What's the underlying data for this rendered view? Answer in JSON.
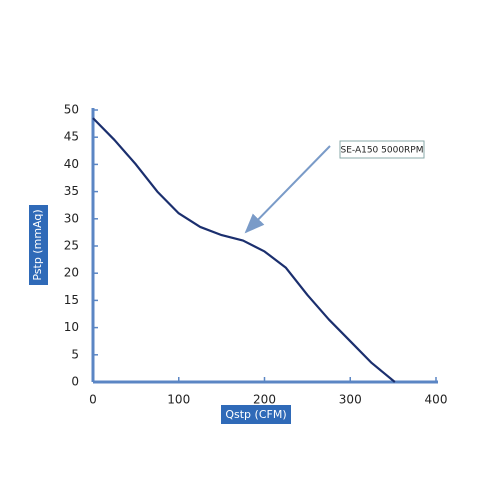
{
  "chart_data": {
    "type": "line",
    "xlabel": "Qstp (CFM)",
    "ylabel": "Pstp (mmAq)",
    "annotation": "SE-A150 5000RPM",
    "x": [
      0,
      25,
      50,
      75,
      100,
      125,
      150,
      175,
      200,
      225,
      250,
      275,
      300,
      325,
      352
    ],
    "series": [
      {
        "name": "SE-A150 5000RPM",
        "color": "#1b2f6e",
        "values": [
          48.5,
          44.5,
          40,
          35,
          31,
          28.5,
          27,
          26,
          24,
          21,
          16,
          11.5,
          7.5,
          3.5,
          0
        ]
      }
    ],
    "xlim": [
      0,
      400
    ],
    "xticks": [
      0,
      100,
      200,
      300,
      400
    ],
    "ylim": [
      0,
      50
    ],
    "yticks": [
      0,
      5,
      10,
      15,
      20,
      25,
      30,
      35,
      40,
      45,
      50
    ],
    "axis_color": "#5b86c4",
    "label_box_color": "#2f6ab8"
  }
}
